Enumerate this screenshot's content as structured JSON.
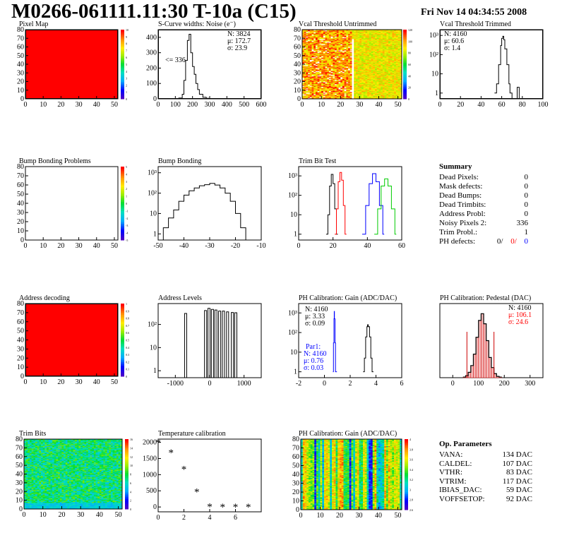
{
  "header": {
    "title": "M0266-061111.11:30 T-10a (C15)",
    "date": "Fri Nov 14 04:34:55 2008"
  },
  "panels": {
    "pixel_map": {
      "title": "Pixel Map",
      "fill": "#ff0000"
    },
    "scurve": {
      "title": "S-Curve widths: Noise (e⁻)",
      "n": "N: 3824",
      "mu": "μ: 172.7",
      "sigma": "σ: 23.9",
      "note": "<= 336"
    },
    "vcal_untrimmed": {
      "title": "Vcal Threshold Untrimmed"
    },
    "vcal_trimmed": {
      "title": "Vcal Threshold Trimmed",
      "n": "N: 4160",
      "mu": "μ: 60.6",
      "sigma": "σ: 1.4"
    },
    "bump_problems": {
      "title": "Bump Bonding Problems"
    },
    "bump_bonding": {
      "title": "Bump Bonding"
    },
    "trim_bit_test": {
      "title": "Trim Bit Test"
    },
    "summary": {
      "title": "Summary",
      "rows": [
        {
          "label": "Dead Pixels:",
          "value": "0"
        },
        {
          "label": "Mask defects:",
          "value": "0"
        },
        {
          "label": "Dead Bumps:",
          "value": "0"
        },
        {
          "label": "Dead Trimbits:",
          "value": "0"
        },
        {
          "label": "Address Probl:",
          "value": "0"
        },
        {
          "label": "Noisy Pixels 2:",
          "value": "336"
        },
        {
          "label": "Trim Probl.:",
          "value": "1"
        }
      ],
      "ph_label": "PH defects:",
      "ph_values": [
        "0/",
        "0/",
        "0"
      ]
    },
    "address_decoding": {
      "title": "Address decoding"
    },
    "address_levels": {
      "title": "Address Levels"
    },
    "ph_gain": {
      "title": "PH Calibration: Gain (ADC/DAC)",
      "n": "N: 4160",
      "mu": "μ: 3.33",
      "sigma": "σ: 0.09",
      "par1_label": "Par1:",
      "par1_n": "N: 4160",
      "par1_mu": "μ: 0.76",
      "par1_sigma": "σ: 0.03"
    },
    "ph_pedestal": {
      "title": "PH Calibration: Pedestal (DAC)",
      "n": "N: 4160",
      "mu": "μ: 106.1",
      "sigma": "σ: 24.6"
    },
    "trim_bits": {
      "title": "Trim Bits"
    },
    "temperature": {
      "title": "Temperature calibration"
    },
    "ph_gain_map": {
      "title": "PH Calibration: Gain (ADC/DAC)"
    },
    "op_params": {
      "title": "Op. Parameters",
      "rows": [
        {
          "label": "VANA:",
          "value": "134 DAC"
        },
        {
          "label": "CALDEL:",
          "value": "107 DAC"
        },
        {
          "label": "VTHR:",
          "value": "83 DAC"
        },
        {
          "label": "VTRIM:",
          "value": "117 DAC"
        },
        {
          "label": "IBIAS_DAC:",
          "value": "59 DAC"
        },
        {
          "label": "VOFFSETOP:",
          "value": "92 DAC"
        }
      ]
    }
  },
  "chart_data": [
    {
      "name": "Pixel Map",
      "type": "heatmap",
      "xlim": [
        0,
        52
      ],
      "ylim": [
        0,
        80
      ],
      "xticks": [
        "0",
        "10",
        "20",
        "30",
        "40",
        "50"
      ],
      "yticks": [
        "0",
        "10",
        "20",
        "30",
        "40",
        "50",
        "60",
        "70",
        "80"
      ],
      "zticks": [
        "0",
        "1",
        "2",
        "3",
        "4",
        "5",
        "6",
        "7",
        "8",
        "9",
        "10"
      ],
      "value": 10
    },
    {
      "name": "S-Curve widths: Noise (e-)",
      "type": "line",
      "xlim": [
        0,
        600
      ],
      "xticks": [
        "0",
        "100",
        "200",
        "300",
        "400",
        "500",
        "600"
      ],
      "yticks": [
        "0",
        "100",
        "200",
        "300",
        "400"
      ],
      "x": [
        100,
        120,
        140,
        150,
        160,
        170,
        180,
        190,
        200,
        210,
        220,
        230,
        240,
        260,
        280,
        300
      ],
      "y": [
        0,
        5,
        30,
        120,
        250,
        380,
        420,
        300,
        210,
        160,
        100,
        60,
        30,
        10,
        3,
        0
      ]
    },
    {
      "name": "Vcal Threshold Untrimmed",
      "type": "heatmap",
      "xlim": [
        0,
        52
      ],
      "ylim": [
        0,
        80
      ],
      "xticks": [
        "0",
        "10",
        "20",
        "30",
        "40",
        "50"
      ],
      "yticks": [
        "0",
        "10",
        "20",
        "30",
        "40",
        "50",
        "60",
        "70",
        "80"
      ],
      "zticks": [
        "0",
        "20",
        "40",
        "60",
        "80",
        "100",
        "120"
      ]
    },
    {
      "name": "Vcal Threshold Trimmed",
      "type": "line",
      "log_y": true,
      "xlim": [
        0,
        100
      ],
      "xticks": [
        "0",
        "20",
        "40",
        "60",
        "80",
        "100"
      ],
      "yticks": [
        "1",
        "10",
        "10²",
        "10³"
      ],
      "x": [
        53,
        55,
        57,
        59,
        60,
        61,
        62,
        63,
        65,
        67,
        68,
        70,
        72,
        75,
        77
      ],
      "y": [
        1,
        3,
        30,
        300,
        700,
        900,
        600,
        200,
        30,
        3,
        1,
        0,
        0,
        2,
        0
      ]
    },
    {
      "name": "Bump Bonding Problems",
      "type": "heatmap",
      "xlim": [
        0,
        52
      ],
      "ylim": [
        0,
        80
      ],
      "xticks": [
        "0",
        "10",
        "20",
        "30",
        "40",
        "50"
      ],
      "yticks": [
        "0",
        "10",
        "20",
        "30",
        "40",
        "50",
        "60",
        "70",
        "80"
      ],
      "zticks": [
        "-5",
        "-4",
        "-3",
        "-2",
        "-1",
        "0",
        "1",
        "2",
        "3",
        "4",
        "5"
      ]
    },
    {
      "name": "Bump Bonding",
      "type": "line",
      "log_y": true,
      "xlim": [
        -50,
        -10
      ],
      "xticks": [
        "-50",
        "-40",
        "-30",
        "-20",
        "-10"
      ],
      "yticks": [
        "1",
        "10",
        "10²",
        "10³"
      ],
      "x": [
        -50,
        -48,
        -46,
        -44,
        -42,
        -40,
        -38,
        -36,
        -34,
        -32,
        -30,
        -28,
        -26,
        -24,
        -22,
        -20,
        -18,
        -16
      ],
      "y": [
        0.5,
        2,
        6,
        15,
        40,
        80,
        130,
        180,
        230,
        260,
        300,
        250,
        180,
        100,
        40,
        10,
        2,
        0.5
      ]
    },
    {
      "name": "Trim Bit Test",
      "type": "line",
      "log_y": true,
      "xlim": [
        0,
        60
      ],
      "xticks": [
        "0",
        "20",
        "40",
        "60"
      ],
      "yticks": [
        "1",
        "10",
        "10²",
        "10³"
      ],
      "series": [
        {
          "color": "#000000",
          "x": [
            16,
            17,
            18,
            19,
            20,
            21,
            22
          ],
          "y": [
            1,
            10,
            300,
            1200,
            400,
            20,
            1
          ]
        },
        {
          "color": "#ff0000",
          "x": [
            21,
            22,
            23,
            24,
            25,
            26,
            27
          ],
          "y": [
            1,
            20,
            500,
            1500,
            600,
            30,
            1
          ]
        },
        {
          "color": "#0000ff",
          "x": [
            37,
            39,
            41,
            43,
            45,
            47,
            49
          ],
          "y": [
            1,
            30,
            400,
            1300,
            500,
            30,
            1
          ]
        },
        {
          "color": "#00cc00",
          "x": [
            44,
            46,
            48,
            50,
            52,
            54,
            56
          ],
          "y": [
            1,
            20,
            300,
            700,
            300,
            20,
            1
          ]
        }
      ]
    },
    {
      "name": "Address decoding",
      "type": "heatmap",
      "xlim": [
        0,
        52
      ],
      "ylim": [
        0,
        80
      ],
      "xticks": [
        "0",
        "10",
        "20",
        "30",
        "40",
        "50"
      ],
      "yticks": [
        "0",
        "10",
        "20",
        "30",
        "40",
        "50",
        "60",
        "70",
        "80"
      ],
      "zticks": [
        "0",
        "0.1",
        "0.2",
        "0.3",
        "0.4",
        "0.5",
        "0.6",
        "0.7",
        "0.8",
        "0.9",
        "1"
      ],
      "value": 1
    },
    {
      "name": "Address Levels",
      "type": "bar",
      "log_y": true,
      "xlim": [
        -1500,
        1500
      ],
      "xticks": [
        "-1000",
        "0",
        "1000"
      ],
      "yticks": [
        "1",
        "10",
        "10²"
      ],
      "x": [
        -700,
        -120,
        -20,
        80,
        180,
        290,
        400,
        520,
        660,
        760
      ],
      "y": [
        300,
        400,
        500,
        450,
        420,
        380,
        380,
        350,
        330,
        320
      ]
    },
    {
      "name": "PH Calibration: Gain (ADC/DAC)",
      "type": "line",
      "log_y": true,
      "xlim": [
        -2,
        6
      ],
      "xticks": [
        "-2",
        "0",
        "2",
        "4",
        "6"
      ],
      "yticks": [
        "1",
        "10",
        "10²",
        "10³"
      ],
      "series": [
        {
          "color": "#000000",
          "x": [
            3.0,
            3.1,
            3.2,
            3.3,
            3.35,
            3.4,
            3.5,
            3.6,
            3.7
          ],
          "y": [
            1,
            5,
            60,
            200,
            250,
            200,
            60,
            5,
            1
          ]
        },
        {
          "color": "#0000ff",
          "x": [
            0.66,
            0.7,
            0.74,
            0.76,
            0.78,
            0.82,
            0.86
          ],
          "y": [
            1,
            30,
            500,
            1200,
            500,
            30,
            1
          ]
        }
      ]
    },
    {
      "name": "PH Calibration: Pedestal (DAC)",
      "type": "bar",
      "xlim": [
        -50,
        350
      ],
      "xticks": [
        "0",
        "100",
        "200",
        "300"
      ],
      "yticks": [
        "0",
        "20",
        "40",
        "60",
        "80",
        "100"
      ],
      "x": [
        40,
        50,
        60,
        70,
        80,
        90,
        100,
        110,
        120,
        130,
        140,
        150,
        160,
        170,
        180
      ],
      "y": [
        1,
        3,
        8,
        18,
        35,
        60,
        85,
        95,
        80,
        55,
        30,
        15,
        6,
        2,
        1
      ]
    },
    {
      "name": "Trim Bits",
      "type": "heatmap",
      "xlim": [
        0,
        52
      ],
      "ylim": [
        0,
        80
      ],
      "xticks": [
        "0",
        "10",
        "20",
        "30",
        "40",
        "50"
      ],
      "yticks": [
        "0",
        "10",
        "20",
        "30",
        "40",
        "50",
        "60",
        "70",
        "80"
      ],
      "zticks": [
        "0",
        "2",
        "4",
        "6",
        "8",
        "10",
        "12",
        "14",
        "16"
      ]
    },
    {
      "name": "Temperature calibration",
      "type": "scatter",
      "xlim": [
        0,
        8
      ],
      "ylim": [
        -150,
        2100
      ],
      "xticks": [
        "0",
        "2",
        "4",
        "6"
      ],
      "yticks": [
        "0",
        "500",
        "1000",
        "1500",
        "2000"
      ],
      "x": [
        0,
        1,
        2,
        3,
        4,
        5,
        6,
        7
      ],
      "y": [
        2000,
        1680,
        1170,
        470,
        10,
        5,
        5,
        5
      ]
    },
    {
      "name": "PH Calibration: Gain (ADC/DAC) map",
      "type": "heatmap",
      "xlim": [
        0,
        52
      ],
      "ylim": [
        0,
        80
      ],
      "xticks": [
        "0",
        "10",
        "20",
        "30",
        "40",
        "50"
      ],
      "yticks": [
        "0",
        "10",
        "20",
        "30",
        "40",
        "50",
        "60",
        "70",
        "80"
      ],
      "zticks": [
        "2.6",
        "2.8",
        "3",
        "3.2",
        "3.4",
        "3.6",
        "3.8",
        "4"
      ]
    }
  ]
}
